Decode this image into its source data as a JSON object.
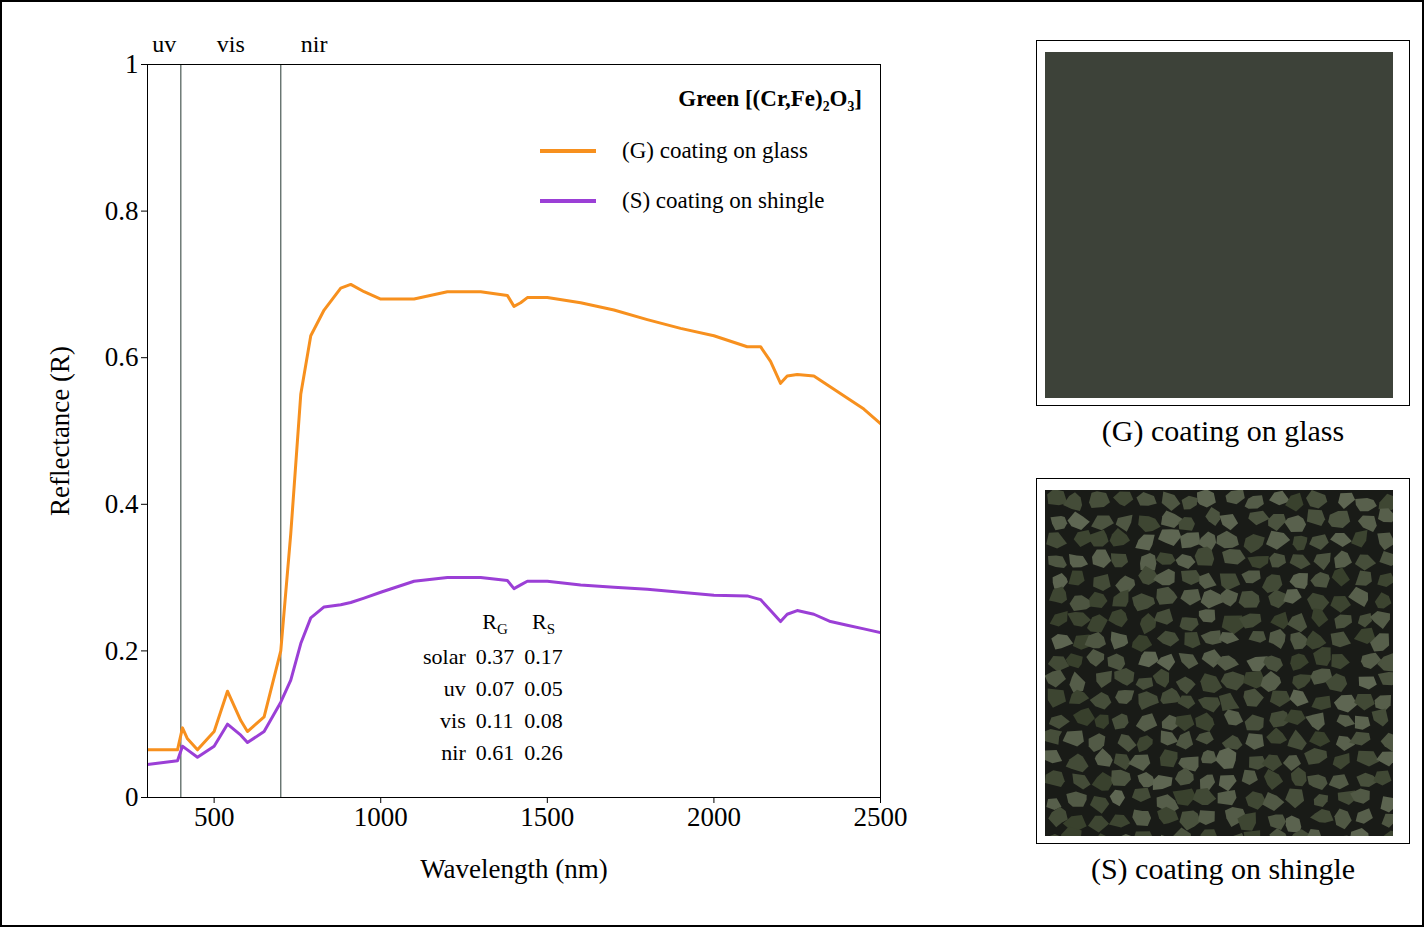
{
  "chart_data": {
    "type": "line",
    "title": "Green [(Cr,Fe)₂O₃]",
    "xlabel": "Wavelength (nm)",
    "ylabel": "Reflectance (R)",
    "x": [
      300,
      390,
      405,
      420,
      450,
      500,
      540,
      580,
      600,
      650,
      700,
      730,
      760,
      790,
      830,
      880,
      910,
      950,
      1000,
      1100,
      1200,
      1300,
      1380,
      1400,
      1420,
      1440,
      1500,
      1600,
      1700,
      1800,
      1900,
      2000,
      2100,
      2140,
      2170,
      2200,
      2220,
      2250,
      2300,
      2350,
      2400,
      2450,
      2500
    ],
    "series": [
      {
        "name": "(G) coating on glass",
        "color": "#f7901e",
        "values": [
          0.065,
          0.065,
          0.095,
          0.08,
          0.065,
          0.09,
          0.145,
          0.105,
          0.09,
          0.11,
          0.2,
          0.36,
          0.55,
          0.63,
          0.665,
          0.695,
          0.7,
          0.69,
          0.68,
          0.68,
          0.69,
          0.69,
          0.685,
          0.67,
          0.675,
          0.682,
          0.682,
          0.675,
          0.665,
          0.652,
          0.64,
          0.63,
          0.615,
          0.615,
          0.595,
          0.565,
          0.575,
          0.577,
          0.575,
          0.56,
          0.545,
          0.53,
          0.51
        ]
      },
      {
        "name": "(S) coating on shingle",
        "color": "#9b3fd6",
        "values": [
          0.045,
          0.05,
          0.07,
          0.065,
          0.055,
          0.07,
          0.1,
          0.085,
          0.075,
          0.09,
          0.13,
          0.16,
          0.21,
          0.245,
          0.26,
          0.263,
          0.266,
          0.272,
          0.28,
          0.295,
          0.3,
          0.3,
          0.296,
          0.285,
          0.29,
          0.295,
          0.295,
          0.29,
          0.287,
          0.284,
          0.28,
          0.276,
          0.275,
          0.27,
          0.255,
          0.24,
          0.25,
          0.255,
          0.25,
          0.24,
          0.235,
          0.23,
          0.225
        ]
      }
    ],
    "xlim": [
      300,
      2500
    ],
    "xticks": [
      500,
      1000,
      1500,
      2000,
      2500
    ],
    "ylim": [
      0,
      1
    ],
    "yticks": [
      0,
      0.2,
      0.4,
      0.6,
      0.8,
      1
    ],
    "grid": false,
    "legend": "top-right",
    "regions": [
      {
        "label": "uv",
        "from": 300,
        "to": 400,
        "label_x": 350
      },
      {
        "label": "vis",
        "from": 400,
        "to": 700,
        "label_x": 550
      },
      {
        "label": "nir",
        "from": 700,
        "to": 2500,
        "label_x": 800
      }
    ],
    "table": {
      "columns": [
        {
          "main": "R",
          "sub": "G"
        },
        {
          "main": "R",
          "sub": "S"
        }
      ],
      "rows": [
        {
          "label": "solar",
          "values": [
            0.37,
            0.17
          ]
        },
        {
          "label": "uv",
          "values": [
            0.07,
            0.05
          ]
        },
        {
          "label": "vis",
          "values": [
            0.11,
            0.08
          ]
        },
        {
          "label": "nir",
          "values": [
            0.61,
            0.26
          ]
        }
      ]
    }
  },
  "panels": [
    {
      "caption": "(G) coating on glass",
      "kind": "glass"
    },
    {
      "caption": "(S) coating on shingle",
      "kind": "shingle"
    }
  ]
}
